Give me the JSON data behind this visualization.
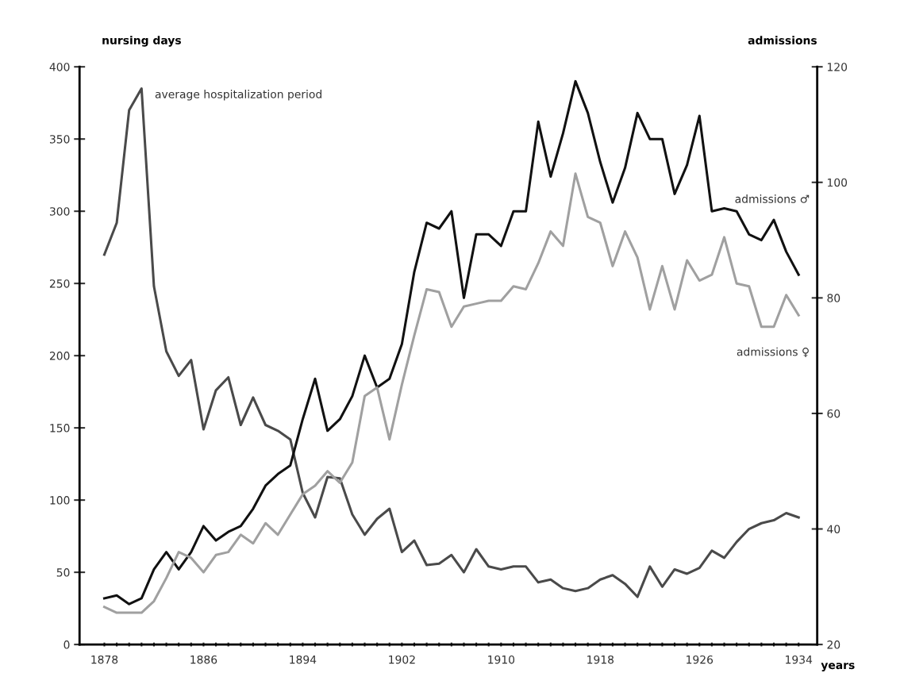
{
  "chart_data": {
    "type": "line",
    "xlabel": "years",
    "ylabel": "nursing days",
    "y2label": "admissions",
    "x": [
      1878,
      1879,
      1880,
      1881,
      1882,
      1883,
      1884,
      1885,
      1886,
      1887,
      1888,
      1889,
      1890,
      1891,
      1892,
      1893,
      1894,
      1895,
      1896,
      1897,
      1898,
      1899,
      1900,
      1901,
      1902,
      1903,
      1904,
      1905,
      1906,
      1907,
      1908,
      1909,
      1910,
      1911,
      1912,
      1913,
      1914,
      1915,
      1916,
      1917,
      1918,
      1919,
      1920,
      1921,
      1922,
      1923,
      1924,
      1925,
      1926,
      1927,
      1928,
      1929,
      1930,
      1931,
      1932,
      1933,
      1934
    ],
    "series": [
      {
        "name": "average hospitalization period",
        "color": "#4a4a4a",
        "values": [
          270,
          292,
          370,
          385,
          248,
          203,
          186,
          197,
          149,
          176,
          185,
          152,
          171,
          152,
          148,
          142,
          105,
          88,
          116,
          115,
          90,
          76,
          87,
          94,
          64,
          72,
          55,
          56,
          62,
          50,
          66,
          54,
          52,
          54,
          54,
          43,
          45,
          39,
          37,
          39,
          45,
          48,
          42,
          33,
          54,
          40,
          52,
          49,
          53,
          65,
          60,
          71,
          80,
          84,
          86,
          91,
          88
        ]
      },
      {
        "name": "admissions ♂",
        "axis": "y2",
        "color": "#111111",
        "values": [
          28,
          28.5,
          27,
          28,
          33,
          36,
          33,
          36,
          40.5,
          38,
          39.5,
          40.5,
          43.5,
          47.5,
          49.5,
          51,
          59,
          66,
          57,
          59,
          63,
          70,
          64.5,
          66,
          72,
          84.5,
          93,
          92,
          95,
          80,
          91,
          91,
          89,
          95,
          95,
          110.5,
          101,
          108.5,
          117.5,
          112,
          103.5,
          96.5,
          102.5,
          112,
          107.5,
          107.5,
          98,
          103,
          111.5,
          95,
          95.5,
          95,
          91,
          90,
          93.5,
          88,
          84
        ]
      },
      {
        "name": "admissions ♀",
        "axis": "y2",
        "color": "#a0a0a0",
        "values": [
          26.5,
          25.5,
          25.5,
          25.5,
          27.5,
          31.5,
          36,
          35,
          32.5,
          35.5,
          36,
          39,
          37.5,
          41,
          39,
          42.5,
          46,
          47.5,
          50,
          48,
          51.5,
          63,
          64.5,
          55.5,
          65,
          73.5,
          81.5,
          81,
          75,
          78.5,
          79,
          79.5,
          79.5,
          82,
          81.5,
          86,
          91.5,
          89,
          101.5,
          94,
          93,
          85.5,
          91.5,
          87,
          78,
          85.5,
          78,
          86.5,
          83,
          84,
          90.5,
          82.5,
          82,
          75,
          75,
          80.5,
          77
        ]
      }
    ],
    "xlim": [
      1876,
      1935.5
    ],
    "xticks": [
      1878,
      {
        "value": 1879,
        "label": null
      },
      {
        "value": 1880,
        "label": null
      },
      {
        "value": 1881,
        "label": null
      },
      {
        "value": 1882,
        "label": null
      },
      {
        "value": 1883,
        "label": null
      },
      {
        "value": 1884,
        "label": null
      },
      {
        "value": 1885,
        "label": null
      },
      1886,
      {
        "value": 1887,
        "label": null
      },
      {
        "value": 1888,
        "label": null
      },
      {
        "value": 1889,
        "label": null
      },
      {
        "value": 1890,
        "label": null
      },
      {
        "value": 1891,
        "label": null
      },
      {
        "value": 1892,
        "label": null
      },
      {
        "value": 1893,
        "label": null
      },
      1894,
      {
        "value": 1895,
        "label": null
      },
      {
        "value": 1896,
        "label": null
      },
      {
        "value": 1897,
        "label": null
      },
      {
        "value": 1898,
        "label": null
      },
      {
        "value": 1899,
        "label": null
      },
      {
        "value": 1900,
        "label": null
      },
      {
        "value": 1901,
        "label": null
      },
      1902,
      {
        "value": 1903,
        "label": null
      },
      {
        "value": 1904,
        "label": null
      },
      {
        "value": 1905,
        "label": null
      },
      {
        "value": 1906,
        "label": null
      },
      {
        "value": 1907,
        "label": null
      },
      {
        "value": 1908,
        "label": null
      },
      {
        "value": 1909,
        "label": null
      },
      1910,
      {
        "value": 1911,
        "label": null
      },
      {
        "value": 1912,
        "label": null
      },
      {
        "value": 1913,
        "label": null
      },
      {
        "value": 1914,
        "label": null
      },
      {
        "value": 1915,
        "label": null
      },
      {
        "value": 1916,
        "label": null
      },
      {
        "value": 1917,
        "label": null
      },
      1918,
      {
        "value": 1919,
        "label": null
      },
      {
        "value": 1920,
        "label": null
      },
      {
        "value": 1921,
        "label": null
      },
      {
        "value": 1922,
        "label": null
      },
      {
        "value": 1923,
        "label": null
      },
      {
        "value": 1924,
        "label": null
      },
      {
        "value": 1925,
        "label": null
      },
      1926,
      {
        "value": 1927,
        "label": null
      },
      {
        "value": 1928,
        "label": null
      },
      {
        "value": 1929,
        "label": null
      },
      {
        "value": 1930,
        "label": null
      },
      {
        "value": 1931,
        "label": null
      },
      {
        "value": 1932,
        "label": null
      },
      {
        "value": 1933,
        "label": null
      },
      1934
    ],
    "ylim": [
      0,
      400
    ],
    "yticks": [
      0,
      50,
      100,
      150,
      200,
      250,
      300,
      350,
      400
    ],
    "y2lim": [
      20,
      120
    ],
    "y2ticks": [
      20,
      40,
      60,
      80,
      100,
      120
    ],
    "grid": false,
    "legend": false,
    "marker": "none",
    "line_style": "solid"
  }
}
